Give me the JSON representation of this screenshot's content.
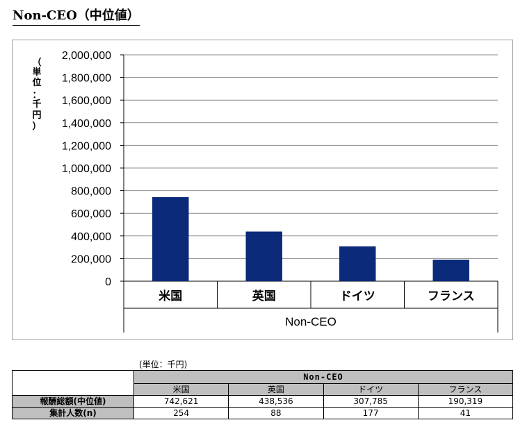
{
  "title": {
    "latin": "Non-CEO",
    "cjk": "（中位値）"
  },
  "chart_data": {
    "type": "bar",
    "group_label": "Non-CEO",
    "categories": [
      "米国",
      "英国",
      "ドイツ",
      "フランス"
    ],
    "values": [
      742621,
      438536,
      307785,
      190319
    ],
    "ylabel": "（単位：千円）",
    "ylabel_chars": [
      "（",
      "単",
      "位",
      "：",
      "千",
      "円",
      "）"
    ],
    "ylim": [
      0,
      2000000
    ],
    "yticks": [
      0,
      200000,
      400000,
      600000,
      800000,
      1000000,
      1200000,
      1400000,
      1600000,
      1800000,
      2000000
    ],
    "ytick_labels": [
      "0",
      "200,000",
      "400,000",
      "600,000",
      "800,000",
      "1,000,000",
      "1,200,000",
      "1,400,000",
      "1,600,000",
      "1,800,000",
      "2,000,000"
    ],
    "bar_color": "#0b2a7a",
    "grid": true
  },
  "table": {
    "unit": "(単位：千円)",
    "group_header": "Non-CEO",
    "columns": [
      "米国",
      "英国",
      "ドイツ",
      "フランス"
    ],
    "rows": [
      {
        "label": "報酬総額(中位値)",
        "values": [
          "742,621",
          "438,536",
          "307,785",
          "190,319"
        ]
      },
      {
        "label": "集計人数(n)",
        "values": [
          "254",
          "88",
          "177",
          "41"
        ]
      }
    ]
  }
}
